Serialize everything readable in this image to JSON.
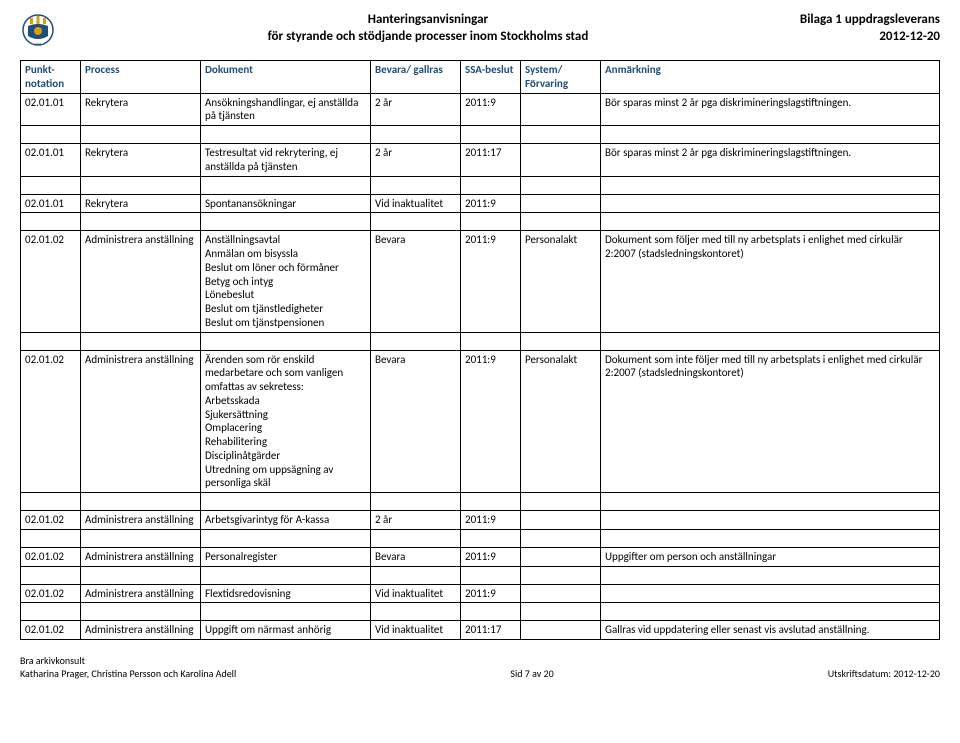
{
  "header": {
    "title_line1": "Hanteringsanvisningar",
    "title_line2": "för styrande och stödjande processer inom Stockholms stad",
    "right_line1": "Bilaga 1 uppdragsleverans",
    "right_line2": "2012-12-20"
  },
  "columns": [
    "Punkt-\nnotation",
    "Process",
    "Dokument",
    "Bevara/ gallras",
    "SSA-beslut",
    "System/\nFörvaring",
    "Anmärkning"
  ],
  "rows": [
    {
      "c0": "02.01.01",
      "c1": "Rekrytera",
      "c2": "Ansökningshandlingar, ej anställda på tjänsten",
      "c3": "2 år",
      "c4": "2011:9",
      "c5": "",
      "c6": "Bör sparas minst 2 år pga diskrimineringslagstiftningen."
    },
    {
      "c0": "02.01.01",
      "c1": "Rekrytera",
      "c2": "Testresultat vid rekrytering, ej anställda på tjänsten",
      "c3": "2 år",
      "c4": "2011:17",
      "c5": "",
      "c6": "Bör sparas minst 2 år pga diskrimineringslagstiftningen."
    },
    {
      "c0": "02.01.01",
      "c1": "Rekrytera",
      "c2": "Spontanansökningar",
      "c3": "Vid inaktualitet",
      "c4": "2011:9",
      "c5": "",
      "c6": ""
    },
    {
      "c0": "02.01.02",
      "c1": "Administrera anställning",
      "c2": "Anställningsavtal\nAnmälan om bisyssla\nBeslut om löner och förmåner\nBetyg och intyg\nLönebeslut\nBeslut om tjänstledigheter\nBeslut om tjänstpensionen",
      "c3": "Bevara",
      "c4": "2011:9",
      "c5": "Personalakt",
      "c6": "Dokument som följer med till ny arbetsplats i enlighet med cirkulär 2:2007 (stadsledningskontoret)"
    },
    {
      "c0": "02.01.02",
      "c1": "Administrera anställning",
      "c2": "Ärenden som rör enskild medarbetare och som vanligen omfattas av sekretess:\nArbetsskada\nSjukersättning\nOmplacering\nRehabilitering\nDisciplinåtgärder\nUtredning om uppsägning av personliga skäl",
      "c3": "Bevara",
      "c4": "2011:9",
      "c5": "Personalakt",
      "c6": "Dokument som inte följer med till ny arbetsplats i enlighet med cirkulär 2:2007 (stadsledningskontoret)"
    },
    {
      "c0": "02.01.02",
      "c1": "Administrera anställning",
      "c2": "Arbetsgivarintyg för A-kassa",
      "c3": "2 år",
      "c4": "2011:9",
      "c5": "",
      "c6": ""
    },
    {
      "c0": "02.01.02",
      "c1": "Administrera anställning",
      "c2": "Personalregister",
      "c3": "Bevara",
      "c4": "2011:9",
      "c5": "",
      "c6": "Uppgifter om person och anställningar"
    }
  ],
  "rows2": [
    {
      "c0": "02.01.02",
      "c1": "Administrera anställning",
      "c2": "Flextidsredovisning",
      "c3": "Vid inaktualitet",
      "c4": "2011:9",
      "c5": "",
      "c6": ""
    },
    {
      "c0": "02.01.02",
      "c1": "Administrera anställning",
      "c2": "Uppgift om närmast anhörig",
      "c3": "Vid inaktualitet",
      "c4": "2011:17",
      "c5": "",
      "c6": "Gallras vid uppdatering eller senast vis avslutad anställning."
    }
  ],
  "footer": {
    "left_line1": "Bra arkivkonsult",
    "left_line2": "Katharina Prager, Christina Persson och Karolina Adell",
    "center": "Sid 7 av 20",
    "right": "Utskriftsdatum: 2012-12-20"
  },
  "colors": {
    "header_text": "#1f4e79",
    "border": "#000000",
    "background": "#ffffff"
  }
}
